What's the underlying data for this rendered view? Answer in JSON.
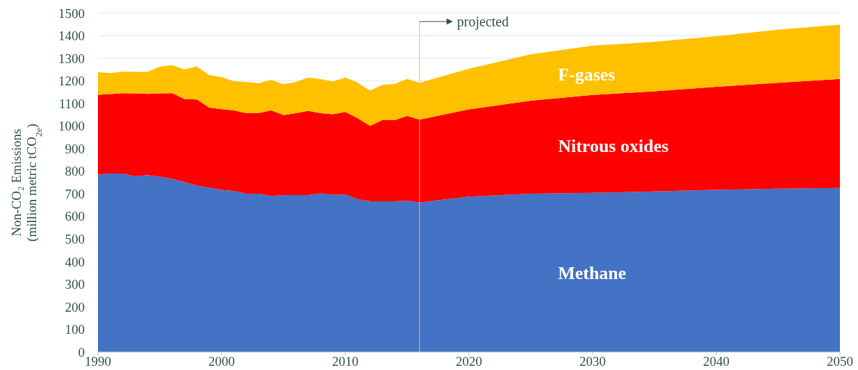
{
  "chart_data": {
    "type": "area",
    "stacked": true,
    "ylabel": "Non-CO₂ Emissions\n(million metric tCO$_{2e}$)",
    "x": [
      1990,
      1991,
      1992,
      1993,
      1994,
      1995,
      1996,
      1997,
      1998,
      1999,
      2000,
      2001,
      2002,
      2003,
      2004,
      2005,
      2006,
      2007,
      2008,
      2009,
      2010,
      2011,
      2012,
      2013,
      2014,
      2015,
      2016,
      2020,
      2025,
      2030,
      2035,
      2040,
      2045,
      2050
    ],
    "series": [
      {
        "name": "Methane",
        "color": "#4472c4",
        "values": [
          785,
          790,
          790,
          778,
          783,
          776,
          767,
          752,
          737,
          727,
          718,
          712,
          701,
          701,
          691,
          695,
          695,
          695,
          702,
          697,
          697,
          676,
          667,
          667,
          667,
          670,
          662,
          688,
          701,
          705,
          711,
          718,
          723,
          726
        ]
      },
      {
        "name": "Nitrous oxides",
        "color": "#ff0000",
        "values": [
          354,
          352,
          356,
          367,
          360,
          369,
          379,
          368,
          381,
          355,
          357,
          358,
          356,
          357,
          379,
          354,
          362,
          372,
          355,
          356,
          366,
          359,
          334,
          360,
          360,
          375,
          367,
          386,
          412,
          433,
          443,
          456,
          469,
          483
        ]
      },
      {
        "name": "F-gases",
        "color": "#ffc000",
        "values": [
          100,
          93,
          95,
          95,
          97,
          118,
          124,
          131,
          146,
          144,
          142,
          129,
          139,
          132,
          135,
          137,
          139,
          148,
          151,
          145,
          152,
          158,
          156,
          156,
          160,
          164,
          163,
          180,
          205,
          218,
          219,
          224,
          235,
          240
        ]
      }
    ],
    "xlim": [
      1990,
      2050
    ],
    "xticks": [
      1990,
      2000,
      2010,
      2020,
      2030,
      2040,
      2050
    ],
    "ylim": [
      0,
      1500
    ],
    "yticks": [
      0,
      100,
      200,
      300,
      400,
      500,
      600,
      700,
      800,
      900,
      1000,
      1100,
      1200,
      1300,
      1400,
      1500
    ],
    "grid": "y",
    "ref_lines": [
      {
        "axis": "x",
        "value": 2016,
        "label": "projected",
        "color": "#f4b183"
      }
    ]
  }
}
